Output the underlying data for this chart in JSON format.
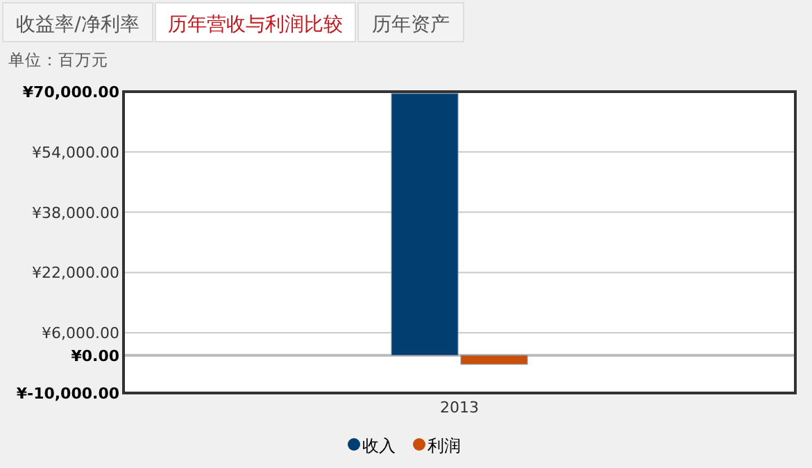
{
  "chart_data": {
    "type": "bar",
    "annotations": [
      "收益率/净利率",
      "历年营收与利润比较",
      "历年资产",
      "单位：百万元"
    ],
    "categories": [
      "2013"
    ],
    "series": [
      {
        "name": "收入",
        "color": "#023f70",
        "values": [
          69500
        ]
      },
      {
        "name": "利润",
        "color": "#c9500a",
        "values": [
          -2400
        ]
      }
    ],
    "ylim": [
      -10000,
      70000
    ],
    "yticks": [
      {
        "value": -10000,
        "label": "¥-10,000.00"
      },
      {
        "value": 0,
        "label": "¥0.00"
      },
      {
        "value": 6000,
        "label": "¥6,000.00"
      },
      {
        "value": 22000,
        "label": "¥22,000.00"
      },
      {
        "value": 38000,
        "label": "¥38,000.00"
      },
      {
        "value": 54000,
        "label": "¥54,000.00"
      },
      {
        "value": 70000,
        "label": "¥70,000.00"
      }
    ],
    "grid": "y",
    "legend": "bottom"
  }
}
